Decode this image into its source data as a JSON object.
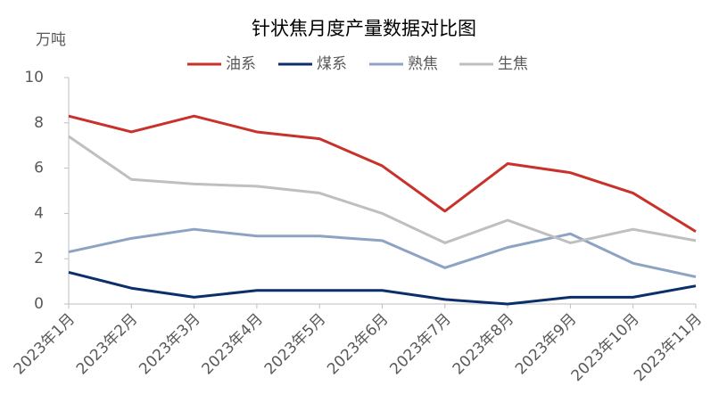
{
  "chart_data": {
    "type": "line",
    "title": "针状焦月度产量数据对比图",
    "y_label": "万吨",
    "categories": [
      "2023年1月",
      "2023年2月",
      "2023年3月",
      "2023年4月",
      "2023年5月",
      "2023年6月",
      "2023年7月",
      "2023年8月",
      "2023年9月",
      "2023年10月",
      "2023年11月"
    ],
    "series": [
      {
        "name": "油系",
        "color": "#c8322a",
        "values": [
          8.3,
          7.6,
          8.3,
          7.6,
          7.3,
          6.1,
          4.1,
          6.2,
          5.8,
          4.9,
          3.2
        ]
      },
      {
        "name": "煤系",
        "color": "#0c2f6b",
        "values": [
          1.4,
          0.7,
          0.3,
          0.6,
          0.6,
          0.6,
          0.2,
          0,
          0.3,
          0.3,
          0.8
        ]
      },
      {
        "name": "熟焦",
        "color": "#8da3c4",
        "values": [
          2.3,
          2.9,
          3.3,
          3.0,
          3.0,
          2.8,
          1.6,
          2.5,
          3.1,
          1.8,
          1.2
        ]
      },
      {
        "name": "生焦",
        "color": "#bfbfbf",
        "values": [
          7.4,
          5.5,
          5.3,
          5.2,
          4.9,
          4.0,
          2.7,
          3.7,
          2.7,
          3.3,
          2.8
        ]
      }
    ],
    "ylim": [
      0,
      10
    ],
    "yticks": [
      0,
      2,
      4,
      6,
      8,
      10
    ],
    "grid": false
  }
}
